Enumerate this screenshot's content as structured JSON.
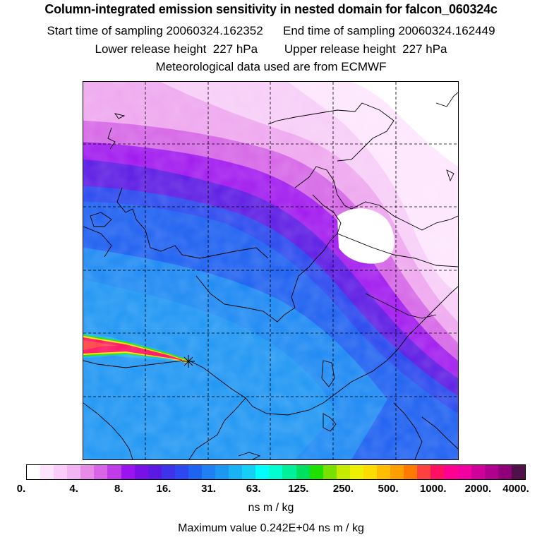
{
  "header": {
    "title": "Column-integrated emission sensitivity in nested domain for falcon_060324c",
    "sampling_line": "Start time of sampling 20060324.162352      End time of sampling 20060324.162449",
    "release_line": "Lower release height  227 hPa        Upper release height  227 hPa",
    "met_line": "Meteorological data used are from ECMWF"
  },
  "colorbar": {
    "colors": [
      "#ffffff",
      "#fde4fd",
      "#f9ccf9",
      "#f3b4f3",
      "#e88be8",
      "#d765e6",
      "#c03ce9",
      "#9b14ef",
      "#7a10e8",
      "#5b1ae3",
      "#3d33e8",
      "#2d48ee",
      "#1f63f1",
      "#1e80f2",
      "#1c98f3",
      "#19b2f4",
      "#15d0f5",
      "#00ffff",
      "#00ffd0",
      "#00ef9a",
      "#00e060",
      "#20e000",
      "#7ae000",
      "#c6ea00",
      "#eef000",
      "#ffdc00",
      "#ffbc00",
      "#ffa000",
      "#ff7a00",
      "#ff4040",
      "#ff1060",
      "#ff0090",
      "#f000a0",
      "#d0009a",
      "#b00090",
      "#900078",
      "#501048"
    ],
    "ticks": [
      "0.",
      "4.",
      "8.",
      "16.",
      "31.",
      "63.",
      "125.",
      "250.",
      "500.",
      "1000.",
      "2000.",
      "4000."
    ],
    "units": "ns m / kg"
  },
  "max_value_line": "Maximum value  0.242E+04 ns m / kg"
}
